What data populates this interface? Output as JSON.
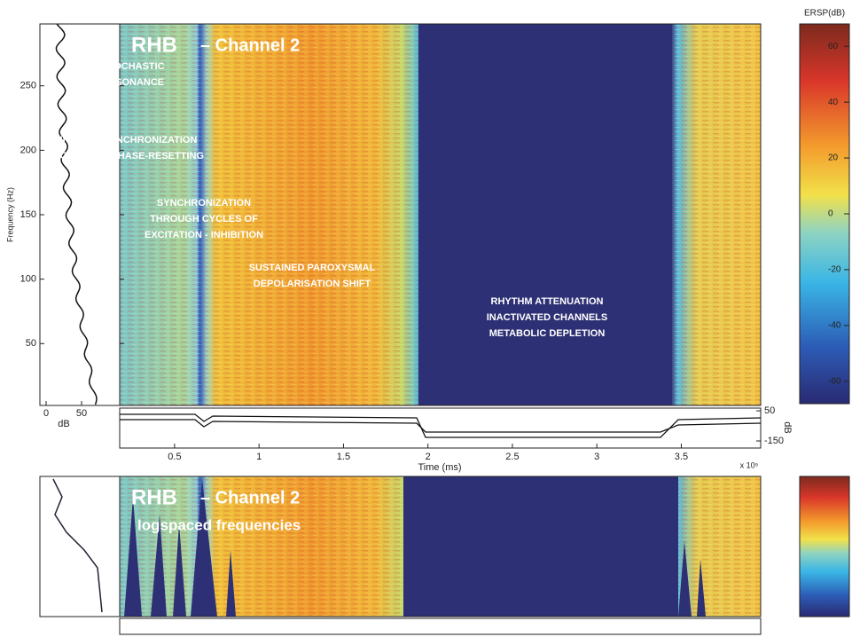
{
  "chart_data": {
    "type": "heatmap",
    "title": "RHB",
    "subtitle": "– Channel 2",
    "x_label": "Time (ms)",
    "x_scale_label": "x 10⁵",
    "y_label": "Frequency (Hz)",
    "xlim": [
      0.175,
      3.97
    ],
    "xticks": [
      0.5,
      1,
      1.5,
      2,
      2.5,
      3,
      3.5
    ],
    "ylim": [
      2,
      298
    ],
    "yticks": [
      50,
      100,
      150,
      200,
      250
    ],
    "colorbar": {
      "label": "ERSP(dB)",
      "lim": [
        -68,
        68
      ],
      "ticks": [
        -60,
        -40,
        -20,
        0,
        20,
        40,
        60
      ]
    },
    "profile": {
      "x_label": "dB",
      "xlim": [
        -8.75,
        103.75
      ],
      "xticks": [
        0,
        50
      ]
    },
    "trace": {
      "y_label": "dB",
      "ylim": [
        -197,
        68
      ],
      "yticks": [
        50,
        -150
      ]
    },
    "annotations": [
      [
        "STOCHASTIC",
        "RESONANCE"
      ],
      [
        "INITIAL DESYNCHRONIZATION",
        "OSCILLATOR PHASE-RESETTING"
      ],
      [
        "SYNCHRONIZATION",
        "THROUGH CYCLES OF",
        "EXCITATION - INHIBITION"
      ],
      [
        "SUSTAINED PAROXYSMAL",
        "DEPOLARISATION SHIFT"
      ],
      [
        "RHYTHM ATTENUATION",
        "INACTIVATED CHANNELS",
        "METABOLIC DEPLETION"
      ]
    ],
    "lower_panel": {
      "title": "RHB",
      "subtitle": "– Channel 2",
      "note": "logspaced frequencies"
    }
  }
}
